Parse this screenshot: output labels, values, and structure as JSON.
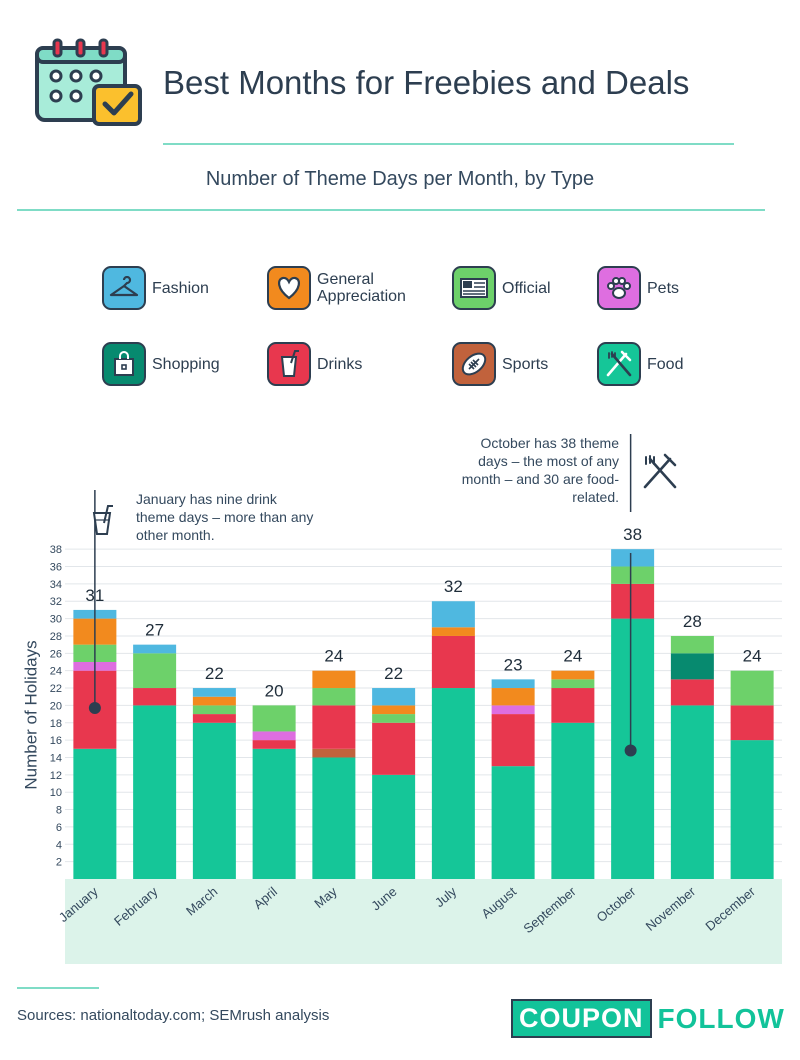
{
  "title": "Best Months for Freebies and Deals",
  "subtitle": "Number of Theme Days per Month, by Type",
  "sources": "Sources: nationaltoday.com; SEMrush analysis",
  "logo": {
    "left": "COUPON",
    "right": "FOLLOW"
  },
  "legend": [
    {
      "key": "fashion",
      "label": "Fashion",
      "color": "#4fb8e0",
      "icon": "hanger-icon"
    },
    {
      "key": "general",
      "label": "General Appreciation",
      "color": "#f28a1e",
      "icon": "heart-icon"
    },
    {
      "key": "official",
      "label": "Official",
      "color": "#6dd16a",
      "icon": "flag-icon"
    },
    {
      "key": "pets",
      "label": "Pets",
      "color": "#de6ee0",
      "icon": "paw-icon"
    },
    {
      "key": "shopping",
      "label": "Shopping",
      "color": "#078a6f",
      "icon": "shopping-bag-icon"
    },
    {
      "key": "drinks",
      "label": "Drinks",
      "color": "#e8374e",
      "icon": "cup-icon"
    },
    {
      "key": "sports",
      "label": "Sports",
      "color": "#c1623c",
      "icon": "football-icon"
    },
    {
      "key": "food",
      "label": "Food",
      "color": "#15c698",
      "icon": "fork-knife-icon"
    }
  ],
  "annotations": {
    "january": "January has nine drink theme days – more than any other month.",
    "october": "October has 38 theme days – the most of any month – and 30 are food-related."
  },
  "chart_data": {
    "type": "bar",
    "stacked": true,
    "title": "Number of Theme Days per Month, by Type",
    "xlabel": "",
    "ylabel": "Number of Holidays",
    "ylim": [
      0,
      38
    ],
    "yticks": [
      2,
      4,
      6,
      8,
      10,
      12,
      14,
      16,
      18,
      20,
      22,
      24,
      26,
      28,
      30,
      32,
      34,
      36,
      38
    ],
    "categories": [
      "January",
      "February",
      "March",
      "April",
      "May",
      "June",
      "July",
      "August",
      "September",
      "October",
      "November",
      "December"
    ],
    "totals": [
      31,
      27,
      22,
      20,
      24,
      22,
      32,
      23,
      24,
      38,
      28,
      24
    ],
    "series": [
      {
        "key": "food",
        "name": "Food",
        "values": [
          15,
          20,
          18,
          15,
          14,
          12,
          22,
          13,
          18,
          30,
          20,
          16
        ]
      },
      {
        "key": "sports",
        "name": "Sports",
        "values": [
          0,
          0,
          0,
          0,
          1,
          0,
          0,
          0,
          0,
          0,
          0,
          0
        ]
      },
      {
        "key": "drinks",
        "name": "Drinks",
        "values": [
          9,
          2,
          1,
          1,
          5,
          6,
          6,
          6,
          4,
          4,
          3,
          4
        ]
      },
      {
        "key": "shopping",
        "name": "Shopping",
        "values": [
          0,
          0,
          0,
          0,
          0,
          0,
          0,
          0,
          0,
          0,
          3,
          0
        ]
      },
      {
        "key": "pets",
        "name": "Pets",
        "values": [
          1,
          0,
          0,
          1,
          0,
          0,
          0,
          1,
          0,
          0,
          0,
          0
        ]
      },
      {
        "key": "official",
        "name": "Official",
        "values": [
          2,
          4,
          1,
          3,
          2,
          1,
          0,
          0,
          1,
          2,
          2,
          4
        ]
      },
      {
        "key": "general",
        "name": "General Appreciation",
        "values": [
          3,
          0,
          1,
          0,
          2,
          1,
          1,
          2,
          1,
          0,
          0,
          0
        ]
      },
      {
        "key": "fashion",
        "name": "Fashion",
        "values": [
          1,
          1,
          1,
          0,
          0,
          2,
          3,
          1,
          0,
          2,
          0,
          0
        ]
      }
    ]
  }
}
